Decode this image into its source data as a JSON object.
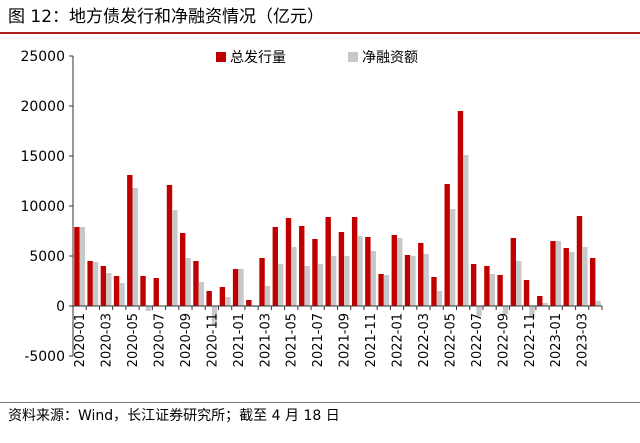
{
  "title": "图 12：地方债发行和净融资情况（亿元）",
  "source": "资料来源：Wind，长江证券研究所；截至 4 月 18 日",
  "colors": {
    "issuance": "#c00000",
    "net_financing": "#c8c8c8",
    "rule": "#b01c1c"
  },
  "chart_data": {
    "type": "bar",
    "title": "地方债发行和净融资情况（亿元）",
    "xlabel": "",
    "ylabel": "",
    "ylim": [
      -5000,
      25000
    ],
    "yticks": [
      25000,
      20000,
      15000,
      10000,
      5000,
      0,
      -5000
    ],
    "ytick_labels": [
      "25000",
      "20000",
      "15000",
      "10000",
      "5000",
      "0",
      "-5000"
    ],
    "grid": false,
    "legend_position": "top-right",
    "categories": [
      "2020-01",
      "2020-02",
      "2020-03",
      "2020-04",
      "2020-05",
      "2020-06",
      "2020-07",
      "2020-08",
      "2020-09",
      "2020-10",
      "2020-11",
      "2020-12",
      "2021-01",
      "2021-02",
      "2021-03",
      "2021-04",
      "2021-05",
      "2021-06",
      "2021-07",
      "2021-08",
      "2021-09",
      "2021-10",
      "2021-11",
      "2021-12",
      "2022-01",
      "2022-02",
      "2022-03",
      "2022-04",
      "2022-05",
      "2022-06",
      "2022-07",
      "2022-08",
      "2022-09",
      "2022-10",
      "2022-11",
      "2022-12",
      "2023-01",
      "2023-02",
      "2023-03",
      "2023-04"
    ],
    "xtick_labels": [
      "2020-01",
      "2020-03",
      "2020-05",
      "2020-07",
      "2020-09",
      "2020-11",
      "2021-01",
      "2021-03",
      "2021-05",
      "2021-07",
      "2021-09",
      "2021-11",
      "2022-01",
      "2022-03",
      "2022-05",
      "2022-07",
      "2022-09",
      "2022-11",
      "2023-01",
      "2023-03"
    ],
    "series": [
      {
        "name": "总发行量",
        "values": [
          7900,
          4500,
          4000,
          3000,
          13100,
          3000,
          2800,
          12100,
          7300,
          4500,
          1500,
          1900,
          3700,
          600,
          4800,
          7900,
          8800,
          8000,
          6700,
          8900,
          7400,
          8900,
          6900,
          3200,
          7100,
          5100,
          6300,
          2900,
          12200,
          19500,
          4200,
          4000,
          3100,
          6800,
          2600,
          1000,
          6500,
          5800,
          9000,
          4800
        ]
      },
      {
        "name": "净融资额",
        "values": [
          7900,
          4400,
          3300,
          2300,
          11800,
          -500,
          0,
          9600,
          4800,
          2400,
          -1900,
          900,
          3700,
          -100,
          2000,
          4200,
          5900,
          4000,
          4200,
          5000,
          5000,
          7000,
          5500,
          3100,
          6800,
          5000,
          5200,
          1500,
          9700,
          15100,
          -1000,
          3200,
          -800,
          4500,
          -1200,
          300,
          6500,
          5400,
          5900,
          500
        ]
      }
    ]
  }
}
